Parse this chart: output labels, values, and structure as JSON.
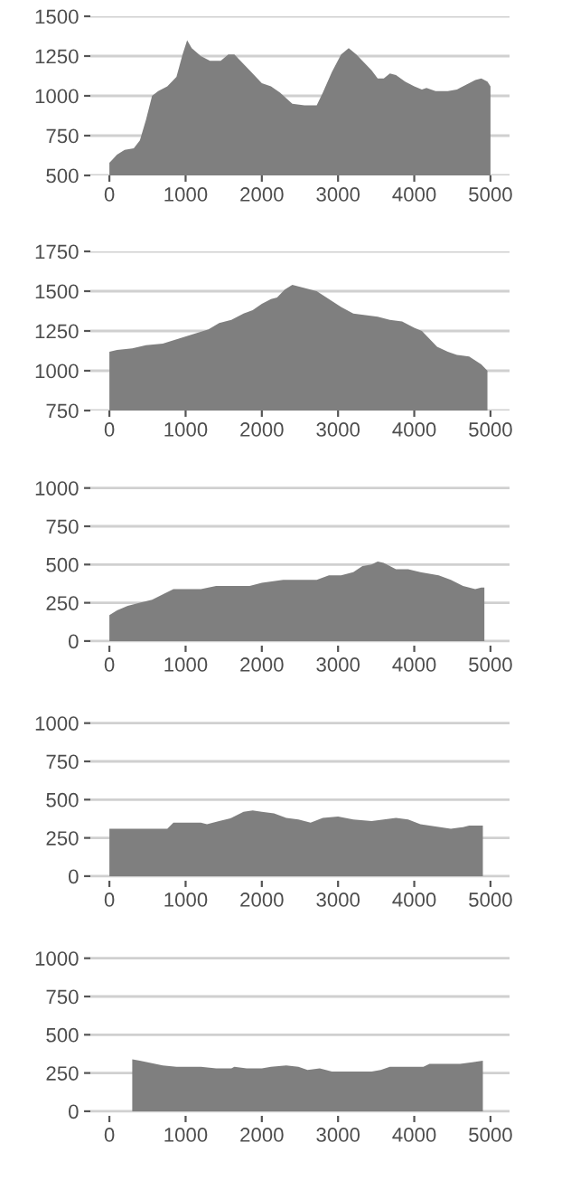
{
  "chart_data": [
    {
      "type": "area",
      "color": "#7f7f7f",
      "grid": "y",
      "xlim": [
        -250,
        5250
      ],
      "ylim": [
        500,
        1500
      ],
      "xticks": [
        0,
        1000,
        2000,
        3000,
        4000,
        5000
      ],
      "yticks": [
        500,
        750,
        1000,
        1250,
        1500
      ],
      "x": [
        0,
        40,
        100,
        200,
        320,
        400,
        480,
        560,
        640,
        760,
        880,
        960,
        1020,
        1080,
        1200,
        1320,
        1460,
        1560,
        1640,
        1720,
        1840,
        2000,
        2120,
        2240,
        2400,
        2560,
        2720,
        2800,
        2920,
        3040,
        3140,
        3240,
        3360,
        3440,
        3520,
        3600,
        3680,
        3760,
        3880,
        4000,
        4100,
        4160,
        4280,
        4440,
        4560,
        4680,
        4800,
        4880,
        4960,
        5000
      ],
      "values": [
        580,
        600,
        630,
        660,
        670,
        720,
        850,
        1000,
        1030,
        1060,
        1120,
        1260,
        1350,
        1300,
        1250,
        1220,
        1220,
        1260,
        1260,
        1220,
        1160,
        1080,
        1060,
        1020,
        950,
        940,
        940,
        1020,
        1150,
        1260,
        1300,
        1260,
        1200,
        1160,
        1110,
        1110,
        1140,
        1130,
        1090,
        1060,
        1040,
        1050,
        1030,
        1030,
        1040,
        1070,
        1100,
        1110,
        1090,
        1060
      ]
    },
    {
      "type": "area",
      "color": "#7f7f7f",
      "grid": "y",
      "xlim": [
        -250,
        5250
      ],
      "ylim": [
        750,
        1750
      ],
      "xticks": [
        0,
        1000,
        2000,
        3000,
        4000,
        5000
      ],
      "yticks": [
        750,
        1000,
        1250,
        1500,
        1750
      ],
      "x": [
        0,
        100,
        300,
        480,
        700,
        900,
        1100,
        1300,
        1440,
        1600,
        1760,
        1880,
        2000,
        2120,
        2200,
        2300,
        2400,
        2560,
        2720,
        2880,
        3040,
        3200,
        3360,
        3520,
        3680,
        3840,
        4000,
        4100,
        4200,
        4300,
        4440,
        4560,
        4720,
        4880,
        4960
      ],
      "values": [
        1120,
        1130,
        1140,
        1160,
        1170,
        1200,
        1230,
        1260,
        1300,
        1320,
        1360,
        1380,
        1420,
        1450,
        1460,
        1510,
        1540,
        1520,
        1500,
        1450,
        1400,
        1360,
        1350,
        1340,
        1320,
        1310,
        1270,
        1250,
        1200,
        1150,
        1120,
        1100,
        1090,
        1040,
        1000
      ]
    },
    {
      "type": "area",
      "color": "#7f7f7f",
      "grid": "y",
      "xlim": [
        -250,
        5250
      ],
      "ylim": [
        -30,
        1010
      ],
      "xticks": [
        0,
        1000,
        2000,
        3000,
        4000,
        5000
      ],
      "yticks": [
        0,
        250,
        500,
        750,
        1000
      ],
      "x": [
        0,
        100,
        240,
        400,
        560,
        720,
        840,
        1000,
        1200,
        1400,
        1600,
        1840,
        2000,
        2280,
        2560,
        2720,
        2880,
        3040,
        3200,
        3320,
        3440,
        3520,
        3600,
        3760,
        3920,
        4080,
        4320,
        4480,
        4640,
        4800,
        4880,
        4920
      ],
      "values": [
        170,
        200,
        230,
        250,
        270,
        310,
        340,
        340,
        340,
        360,
        360,
        360,
        380,
        400,
        400,
        400,
        430,
        430,
        450,
        490,
        500,
        520,
        510,
        470,
        470,
        450,
        430,
        400,
        360,
        340,
        350,
        350
      ]
    },
    {
      "type": "area",
      "color": "#7f7f7f",
      "grid": "y",
      "xlim": [
        -250,
        5250
      ],
      "ylim": [
        -30,
        1010
      ],
      "xticks": [
        0,
        1000,
        2000,
        3000,
        4000,
        5000
      ],
      "yticks": [
        0,
        250,
        500,
        750,
        1000
      ],
      "x": [
        0,
        400,
        760,
        840,
        1000,
        1200,
        1280,
        1440,
        1600,
        1760,
        1880,
        2000,
        2160,
        2320,
        2480,
        2640,
        2800,
        3000,
        3200,
        3440,
        3600,
        3760,
        3920,
        4080,
        4200,
        4480,
        4640,
        4720,
        4900
      ],
      "values": [
        310,
        310,
        310,
        350,
        350,
        350,
        340,
        360,
        380,
        420,
        430,
        420,
        410,
        380,
        370,
        350,
        380,
        390,
        370,
        360,
        370,
        380,
        370,
        340,
        330,
        310,
        320,
        330,
        330
      ]
    },
    {
      "type": "area",
      "color": "#7f7f7f",
      "grid": "y",
      "xlim": [
        -250,
        5250
      ],
      "ylim": [
        -30,
        1010
      ],
      "xticks": [
        0,
        1000,
        2000,
        3000,
        4000,
        5000
      ],
      "yticks": [
        0,
        250,
        500,
        750,
        1000
      ],
      "x": [
        300,
        400,
        500,
        700,
        880,
        1000,
        1200,
        1400,
        1600,
        1640,
        1800,
        2000,
        2120,
        2320,
        2480,
        2600,
        2760,
        2920,
        3200,
        3440,
        3560,
        3680,
        3840,
        4120,
        4200,
        4400,
        4600,
        4760,
        4900
      ],
      "values": [
        340,
        330,
        320,
        300,
        290,
        290,
        290,
        280,
        280,
        290,
        280,
        280,
        290,
        300,
        290,
        270,
        280,
        260,
        260,
        260,
        270,
        290,
        290,
        290,
        310,
        310,
        310,
        320,
        330
      ]
    }
  ]
}
